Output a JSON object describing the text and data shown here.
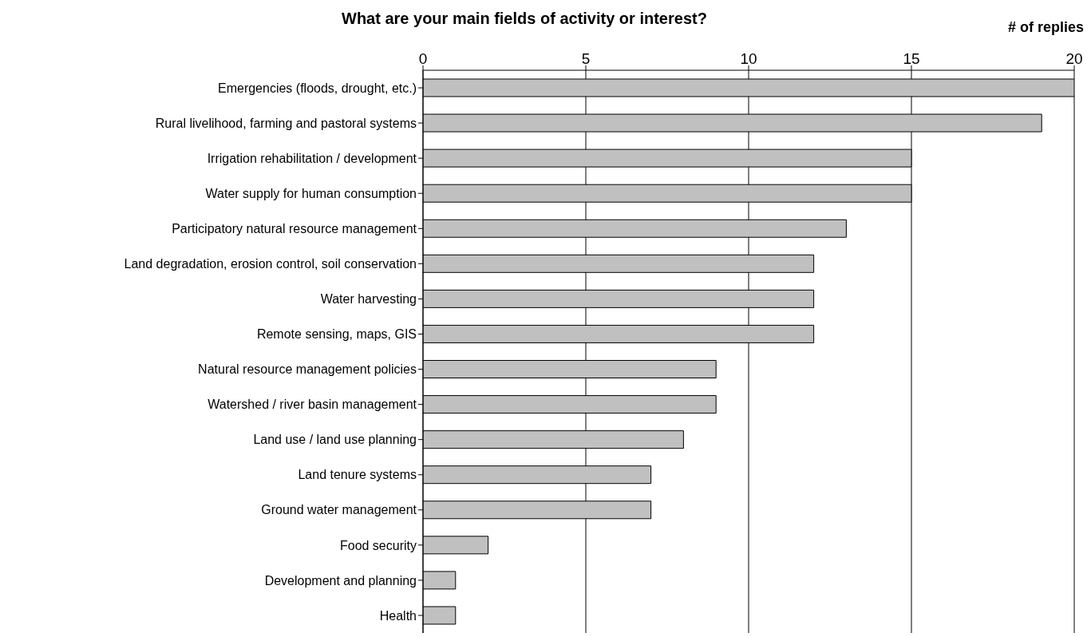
{
  "chart_data": {
    "type": "bar",
    "orientation": "horizontal",
    "title": "What are your main fields of activity or interest?",
    "xlabel": "# of replies",
    "categories": [
      "Emergencies (floods, drought, etc.)",
      "Rural livelihood, farming and pastoral systems",
      "Irrigation rehabilitation / development",
      "Water supply for human consumption",
      "Participatory natural resource management",
      "Land degradation, erosion control, soil conservation",
      "Water harvesting",
      "Remote sensing, maps, GIS",
      "Natural resource management policies",
      "Watershed / river basin management",
      "Land use / land use planning",
      "Land tenure systems",
      "Ground water management",
      "Food security",
      "Development and planning",
      "Health"
    ],
    "values": [
      20,
      19,
      15,
      15,
      13,
      12,
      12,
      12,
      9,
      9,
      8,
      7,
      7,
      2,
      1,
      1
    ],
    "color": "#c0c0c0",
    "xlim": [
      0,
      20
    ],
    "xticks": [
      0,
      5,
      10,
      15,
      20
    ],
    "grid": "x"
  }
}
